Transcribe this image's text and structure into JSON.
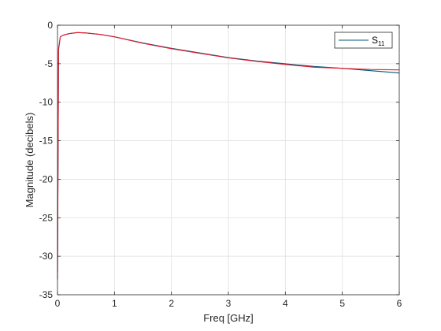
{
  "chart_data": {
    "type": "line",
    "title": "",
    "xlabel": "Freq [GHz]",
    "ylabel": "Magnitude (decibels)",
    "xlim": [
      0,
      6
    ],
    "ylim": [
      -35,
      0
    ],
    "xticks": [
      0,
      1,
      2,
      3,
      4,
      5,
      6
    ],
    "yticks": [
      0,
      -5,
      -10,
      -15,
      -20,
      -25,
      -30,
      -35
    ],
    "grid": true,
    "legend": {
      "placement": "top-right",
      "entries": [
        {
          "base": "S",
          "sub": "11",
          "color": "#00597a"
        }
      ]
    },
    "series": [
      {
        "name": "S11",
        "color": "#00597a",
        "x": [
          0,
          0.02,
          0.05,
          0.1,
          0.2,
          0.35,
          0.5,
          0.75,
          1.0,
          1.5,
          2.0,
          2.5,
          3.0,
          3.5,
          4.0,
          4.5,
          5.0,
          5.5,
          6.0
        ],
        "y": [
          -32.0,
          -3.0,
          -1.5,
          -1.3,
          -1.1,
          -0.95,
          -1.0,
          -1.2,
          -1.5,
          -2.3,
          -3.0,
          -3.6,
          -4.2,
          -4.65,
          -5.0,
          -5.35,
          -5.6,
          -5.9,
          -6.2
        ]
      },
      {
        "name": "",
        "color": "#e8192c",
        "x": [
          0,
          0.02,
          0.05,
          0.1,
          0.2,
          0.35,
          0.5,
          0.75,
          1.0,
          1.5,
          2.0,
          2.5,
          3.0,
          3.5,
          4.0,
          4.5,
          5.0,
          5.5,
          6.0
        ],
        "y": [
          -33.0,
          -3.2,
          -1.5,
          -1.3,
          -1.1,
          -0.95,
          -1.0,
          -1.2,
          -1.5,
          -2.35,
          -3.05,
          -3.65,
          -4.25,
          -4.7,
          -5.1,
          -5.45,
          -5.6,
          -5.75,
          -5.8
        ]
      }
    ]
  }
}
